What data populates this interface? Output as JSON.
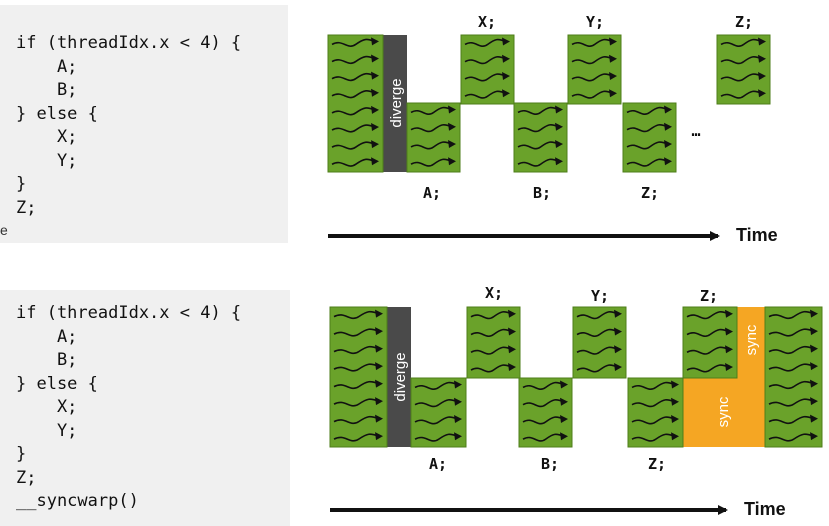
{
  "top": {
    "code": [
      "if (threadIdx.x < 4) {",
      "    A;",
      "    B;",
      "} else {",
      "    X;",
      "    Y;",
      "}",
      "Z;"
    ],
    "diverge_label": "diverge",
    "labels": {
      "x": "X;",
      "y": "Y;",
      "z_upper": "Z;",
      "a": "A;",
      "b": "B;",
      "z_lower": "Z;",
      "ellipsis": "…"
    },
    "time_label": "Time"
  },
  "bottom": {
    "code": [
      "if (threadIdx.x < 4) {",
      "    A;",
      "    B;",
      "} else {",
      "    X;",
      "    Y;",
      "}",
      "Z;",
      "__syncwarp()"
    ],
    "diverge_label": "diverge",
    "labels": {
      "x": "X;",
      "y": "Y;",
      "z_upper": "Z;",
      "a": "A;",
      "b": "B;",
      "z_lower": "Z;"
    },
    "sync_label_upper": "sync",
    "sync_label_lower": "sync",
    "time_label": "Time"
  },
  "edge_char": "e",
  "colors": {
    "warp_green": "#6aa22a",
    "warp_border": "#4e7d19",
    "diverge_gray": "#4a4a4a",
    "sync_orange": "#f5a623",
    "code_bg": "#f0f0f0"
  }
}
